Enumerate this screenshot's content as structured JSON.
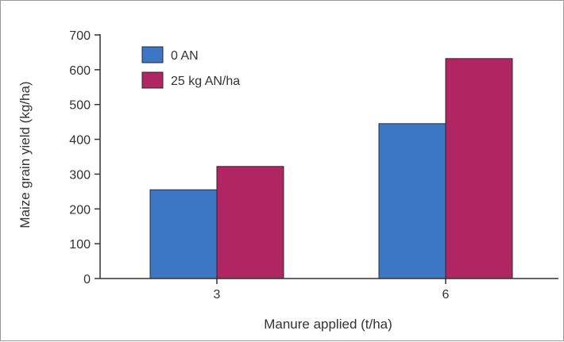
{
  "chart_data": {
    "type": "bar",
    "title": "",
    "xlabel": "Manure applied (t/ha)",
    "ylabel": "Maize grain yield (kg/ha)",
    "categories": [
      "3",
      "6"
    ],
    "series": [
      {
        "name": "0 AN",
        "values": [
          255,
          445
        ],
        "color": "#3b77c4"
      },
      {
        "name": "25 kg AN/ha",
        "values": [
          322,
          632
        ],
        "color": "#b02562"
      }
    ],
    "ylim": [
      0,
      700
    ],
    "yticks": [
      0,
      100,
      200,
      300,
      400,
      500,
      600,
      700
    ],
    "grid": false,
    "legend_position": "top-left"
  }
}
